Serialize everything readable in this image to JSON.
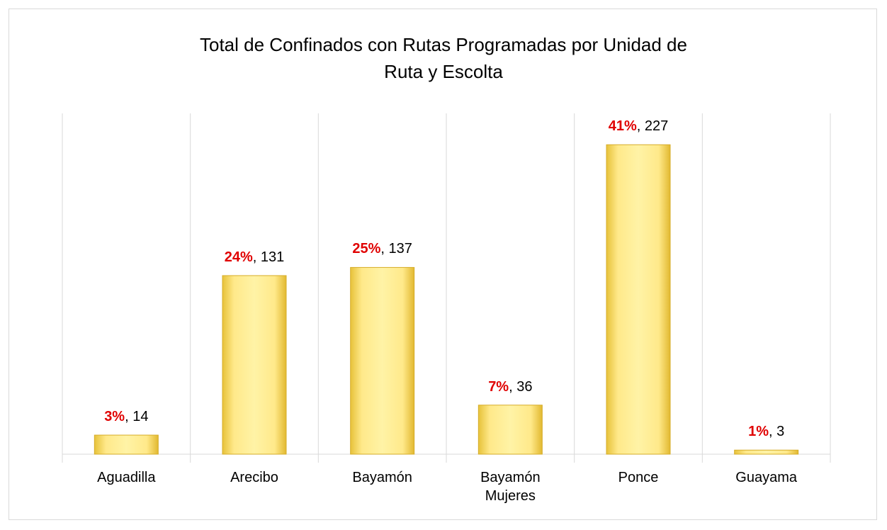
{
  "chart_data": {
    "type": "bar",
    "title": "Total de Confinados con Rutas Programadas por Unidad de Ruta y Escolta",
    "categories": [
      "Aguadilla",
      "Arecibo",
      "Bayamón",
      "Bayamón Mujeres",
      "Ponce",
      "Guayama"
    ],
    "values": [
      14,
      131,
      137,
      36,
      227,
      3
    ],
    "percent_labels": [
      "3%",
      "24%",
      "25%",
      "7%",
      "41%",
      "1%"
    ],
    "label_separator": ", ",
    "color": "#ffe98a",
    "ylim": [
      0,
      250
    ],
    "grid": true
  }
}
